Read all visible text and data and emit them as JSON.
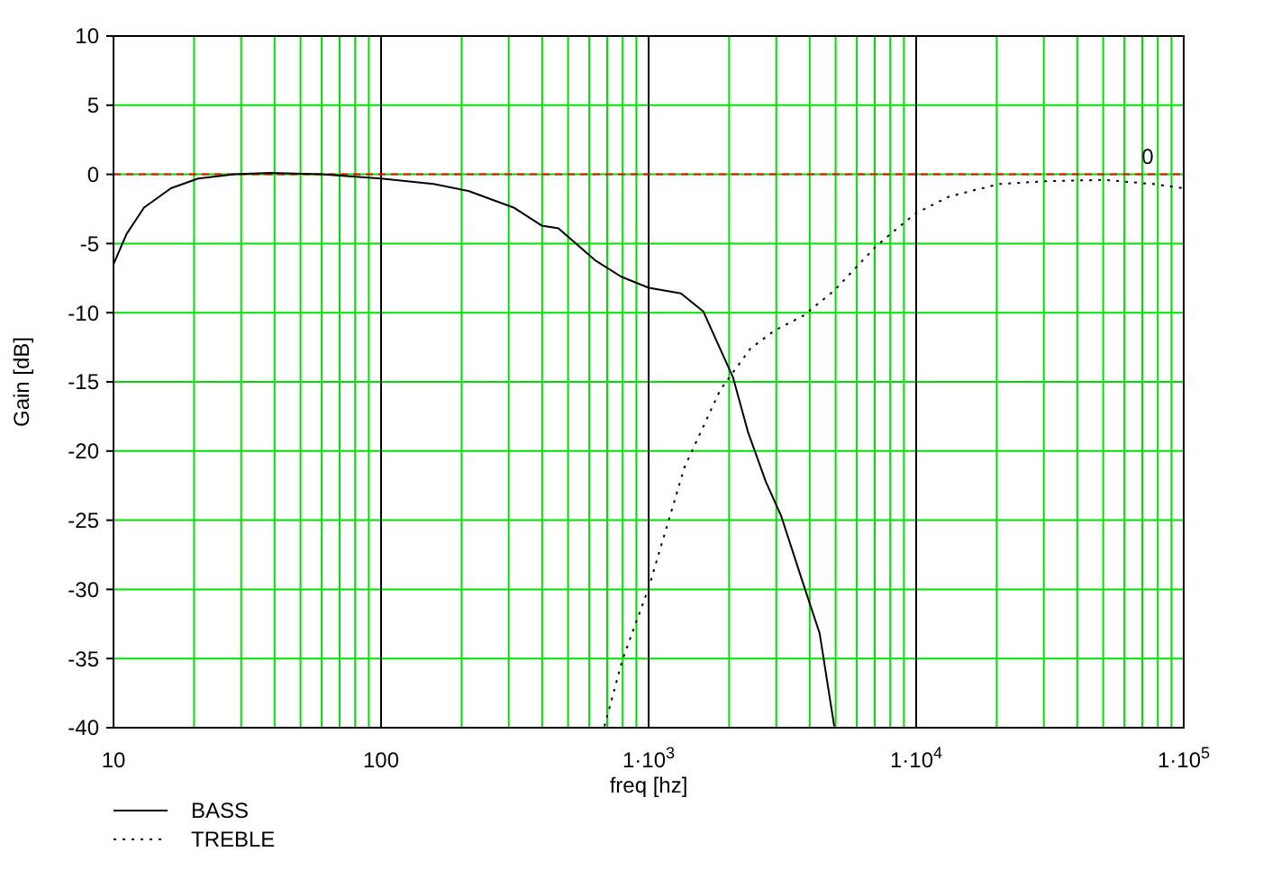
{
  "chart_data": {
    "type": "line",
    "xlabel": "freq [hz]",
    "ylabel": "Gain [dB]",
    "log": "x",
    "xlim": [
      10,
      100000
    ],
    "ylim": [
      -40,
      10
    ],
    "xticks": [
      10,
      100,
      {
        "value": 1000,
        "label": "1·10$^{3}$"
      },
      {
        "value": 10000,
        "label": "1·10$^{4}$"
      },
      {
        "value": 100000,
        "label": "1·10$^{5}$"
      }
    ],
    "yticks": [
      -40,
      -35,
      -30,
      -25,
      -20,
      -15,
      -10,
      -5,
      0,
      5,
      10
    ],
    "grid": true,
    "legend": "bottom left",
    "ref_lines": [
      {
        "axis": "y",
        "value": 0,
        "label": "0",
        "color": "#ff0000",
        "line_style": "dashed"
      }
    ],
    "series": [
      {
        "name": "BASS",
        "color": "#000000",
        "line_style": "solid",
        "x": [
          10,
          11.2,
          13,
          16.4,
          20.7,
          28,
          38.5,
          60,
          100,
          157,
          212,
          313,
          398,
          460,
          630,
          790,
          1000,
          1320,
          1600,
          2070,
          2350,
          2740,
          3130,
          3740,
          4360,
          4940
        ],
        "values": [
          -6.5,
          -4.3,
          -2.4,
          -1.0,
          -0.3,
          0,
          0.1,
          0,
          -0.3,
          -0.7,
          -1.2,
          -2.4,
          -3.7,
          -3.9,
          -6.2,
          -7.4,
          -8.2,
          -8.6,
          -9.9,
          -14.7,
          -18.6,
          -22.2,
          -24.7,
          -29.3,
          -33.2,
          -39.9
        ]
      },
      {
        "name": "TREBLE",
        "color": "#000000",
        "line_style": "dotted",
        "x": [
          684,
          798,
          1000,
          1360,
          1850,
          2400,
          2950,
          3800,
          4940,
          7080,
          8500,
          10000,
          13300,
          20400,
          30300,
          50600,
          76900,
          100000
        ],
        "values": [
          -39.9,
          -35.1,
          -29.9,
          -21.2,
          -15.6,
          -12.6,
          -11.3,
          -10.2,
          -8.4,
          -5.2,
          -3.9,
          -2.8,
          -1.6,
          -0.7,
          -0.5,
          -0.4,
          -0.7,
          -1.0
        ]
      }
    ]
  }
}
